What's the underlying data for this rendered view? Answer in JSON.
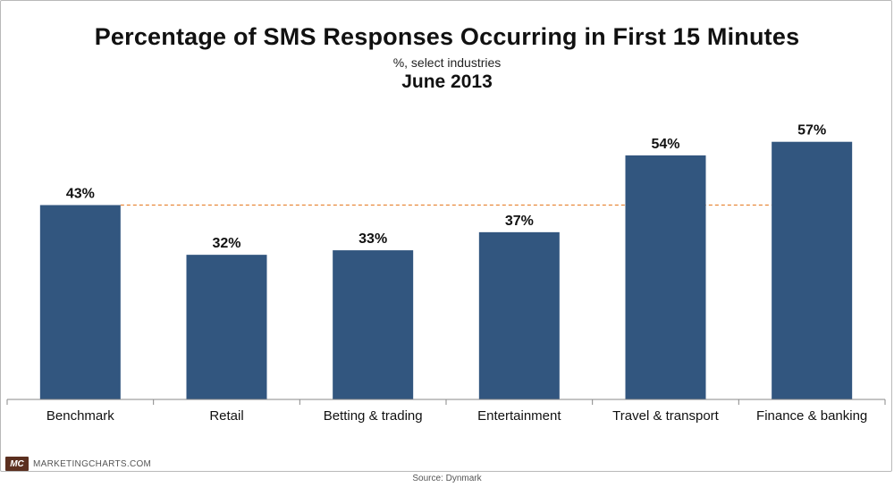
{
  "title": "Percentage of SMS Responses Occurring in First 15 Minutes",
  "subtitle": "%, select industries",
  "date_label": "June 2013",
  "footer": {
    "logo_text": "MC",
    "brand": "MARKETINGCHARTS.COM",
    "source": "Source: Dynmark"
  },
  "colors": {
    "bar": "#32567f",
    "reference_line": "#e8883a",
    "logo_badge": "#5b2f1f"
  },
  "chart_data": {
    "type": "bar",
    "title": "Percentage of SMS Responses Occurring in First 15 Minutes",
    "subtitle": "%, select industries",
    "categories": [
      "Benchmark",
      "Retail",
      "Betting & trading",
      "Entertainment",
      "Travel & transport",
      "Finance & banking"
    ],
    "values": [
      43,
      32,
      33,
      37,
      54,
      57
    ],
    "value_labels": [
      "43%",
      "32%",
      "33%",
      "37%",
      "54%",
      "57%"
    ],
    "ylim": [
      0,
      69
    ],
    "reference_line": {
      "value": 43,
      "style": "dashed"
    },
    "grid": false,
    "legend": "none"
  }
}
